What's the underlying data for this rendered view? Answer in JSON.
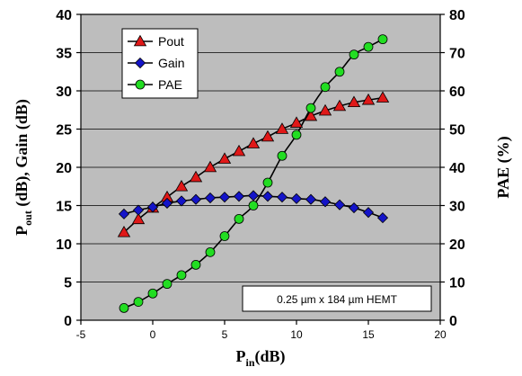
{
  "chart_data": {
    "type": "line",
    "x_axis": {
      "label_main": "P",
      "label_sub": "in",
      "label_rest": "(dB)",
      "range": [
        -5,
        20
      ],
      "ticks": [
        "-5",
        "0",
        "5",
        "10",
        "15",
        "20"
      ]
    },
    "y_left": {
      "label_main": "P",
      "label_sub": "out",
      "label_rest": " (dB), Gain (dB)",
      "range": [
        0,
        40
      ],
      "ticks": [
        "0",
        "5",
        "10",
        "15",
        "20",
        "25",
        "30",
        "35",
        "40"
      ]
    },
    "y_right": {
      "label": "PAE (%)",
      "range": [
        0,
        80
      ],
      "ticks": [
        "0",
        "10",
        "20",
        "30",
        "40",
        "50",
        "60",
        "70",
        "80"
      ]
    },
    "grid": "horizontal",
    "legend_position": "top-left",
    "annotation": "0.25 µm x 184 µm HEMT",
    "series": [
      {
        "name": "Pout",
        "axis": "left",
        "marker": "triangle",
        "color": "#e01818",
        "points": [
          [
            -2,
            11.5
          ],
          [
            -1,
            13.2
          ],
          [
            0,
            14.7
          ],
          [
            1,
            16.1
          ],
          [
            2,
            17.5
          ],
          [
            3,
            18.7
          ],
          [
            4,
            20.0
          ],
          [
            5,
            21.1
          ],
          [
            6,
            22.1
          ],
          [
            7,
            23.1
          ],
          [
            8,
            24.0
          ],
          [
            9,
            25.0
          ],
          [
            10,
            25.8
          ],
          [
            11,
            26.7
          ],
          [
            12,
            27.4
          ],
          [
            13,
            28.0
          ],
          [
            14,
            28.5
          ],
          [
            15,
            28.8
          ],
          [
            16,
            29.1
          ]
        ]
      },
      {
        "name": "Gain",
        "axis": "left",
        "marker": "diamond",
        "color": "#1414c8",
        "points": [
          [
            -2,
            13.9
          ],
          [
            -1,
            14.4
          ],
          [
            0,
            14.8
          ],
          [
            1,
            15.3
          ],
          [
            2,
            15.6
          ],
          [
            3,
            15.8
          ],
          [
            4,
            16.0
          ],
          [
            5,
            16.1
          ],
          [
            6,
            16.2
          ],
          [
            7,
            16.3
          ],
          [
            8,
            16.2
          ],
          [
            9,
            16.1
          ],
          [
            10,
            15.9
          ],
          [
            11,
            15.8
          ],
          [
            12,
            15.5
          ],
          [
            13,
            15.1
          ],
          [
            14,
            14.7
          ],
          [
            15,
            14.1
          ],
          [
            16,
            13.4
          ]
        ]
      },
      {
        "name": "PAE",
        "axis": "right",
        "marker": "circle",
        "color": "#22dd22",
        "points": [
          [
            -2,
            3.2
          ],
          [
            -1,
            4.8
          ],
          [
            0,
            7.0
          ],
          [
            1,
            9.5
          ],
          [
            2,
            11.8
          ],
          [
            3,
            14.5
          ],
          [
            4,
            17.8
          ],
          [
            5,
            22.0
          ],
          [
            6,
            26.5
          ],
          [
            7,
            30.0
          ],
          [
            8,
            36.0
          ],
          [
            9,
            43.0
          ],
          [
            10,
            48.5
          ],
          [
            11,
            55.5
          ],
          [
            12,
            61.0
          ],
          [
            13,
            65.0
          ],
          [
            14,
            69.5
          ],
          [
            15,
            71.5
          ],
          [
            16,
            73.5
          ]
        ]
      }
    ]
  }
}
